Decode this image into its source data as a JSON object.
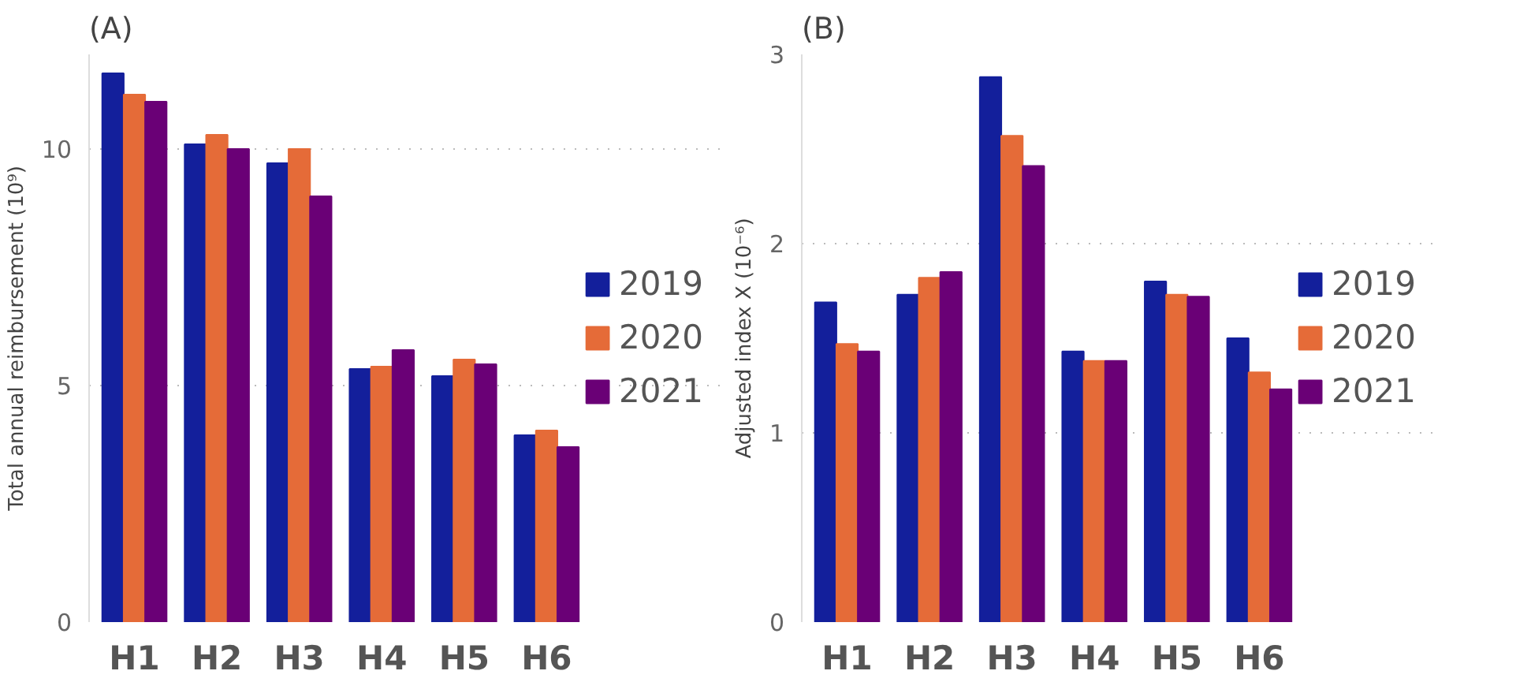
{
  "chart_data": [
    {
      "type": "bar",
      "title": "(A)",
      "ylabel": "Total annual reimbursement (10⁹)",
      "categories": [
        "H1",
        "H2",
        "H3",
        "H4",
        "H5",
        "H6"
      ],
      "ylim": [
        0,
        12
      ],
      "yticks": [
        0,
        5,
        10
      ],
      "grid": "y",
      "legend": "right",
      "series": [
        {
          "name": "2019",
          "color": "#131f9b",
          "values": [
            11.6,
            10.1,
            9.7,
            5.35,
            5.2,
            3.95
          ]
        },
        {
          "name": "2020",
          "color": "#e56b38",
          "values": [
            11.15,
            10.3,
            10.0,
            5.4,
            5.55,
            4.05
          ]
        },
        {
          "name": "2021",
          "color": "#6a0076",
          "values": [
            11.0,
            10.0,
            9.0,
            5.75,
            5.45,
            3.7
          ]
        }
      ]
    },
    {
      "type": "bar",
      "title": "(B)",
      "ylabel": "Adjusted index X (10⁻⁶)",
      "categories": [
        "H1",
        "H2",
        "H3",
        "H4",
        "H5",
        "H6"
      ],
      "ylim": [
        0,
        3
      ],
      "yticks": [
        0,
        1,
        2,
        3
      ],
      "grid": "y",
      "legend": "right",
      "series": [
        {
          "name": "2019",
          "color": "#131f9b",
          "values": [
            1.69,
            1.73,
            2.88,
            1.43,
            1.8,
            1.5
          ]
        },
        {
          "name": "2020",
          "color": "#e56b38",
          "values": [
            1.47,
            1.82,
            2.57,
            1.38,
            1.73,
            1.32
          ]
        },
        {
          "name": "2021",
          "color": "#6a0076",
          "values": [
            1.43,
            1.85,
            2.41,
            1.38,
            1.72,
            1.23
          ]
        }
      ]
    }
  ]
}
